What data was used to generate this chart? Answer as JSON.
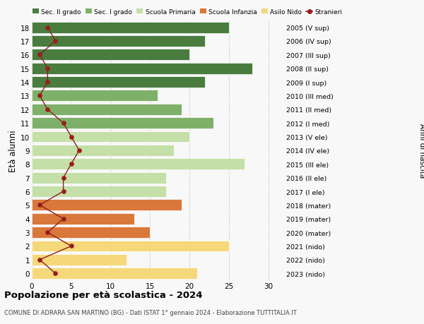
{
  "ages": [
    18,
    17,
    16,
    15,
    14,
    13,
    12,
    11,
    10,
    9,
    8,
    7,
    6,
    5,
    4,
    3,
    2,
    1,
    0
  ],
  "right_labels": [
    "2005 (V sup)",
    "2006 (IV sup)",
    "2007 (III sup)",
    "2008 (II sup)",
    "2009 (I sup)",
    "2010 (III med)",
    "2011 (II med)",
    "2012 (I med)",
    "2013 (V ele)",
    "2014 (IV ele)",
    "2015 (III ele)",
    "2016 (II ele)",
    "2017 (I ele)",
    "2018 (mater)",
    "2019 (mater)",
    "2020 (mater)",
    "2021 (nido)",
    "2022 (nido)",
    "2023 (nido)"
  ],
  "bar_values": [
    25,
    22,
    20,
    28,
    22,
    16,
    19,
    23,
    20,
    18,
    27,
    17,
    17,
    19,
    13,
    15,
    25,
    12,
    21
  ],
  "bar_colors": [
    "#4a7c3f",
    "#4a7c3f",
    "#4a7c3f",
    "#4a7c3f",
    "#4a7c3f",
    "#7fb069",
    "#7fb069",
    "#7fb069",
    "#c5dfa8",
    "#c5dfa8",
    "#c5dfa8",
    "#c5dfa8",
    "#c5dfa8",
    "#d9783a",
    "#d9783a",
    "#d9783a",
    "#f5d87a",
    "#f5d87a",
    "#f5d87a"
  ],
  "stranieri_values": [
    2,
    3,
    1,
    2,
    2,
    1,
    2,
    4,
    5,
    6,
    5,
    4,
    4,
    1,
    4,
    2,
    5,
    1,
    3
  ],
  "xlim": [
    0,
    32
  ],
  "xticks": [
    0,
    5,
    10,
    15,
    20,
    25,
    30
  ],
  "title": "Popolazione per età scolastica - 2024",
  "subtitle": "COMUNE DI ADRARA SAN MARTINO (BG) - Dati ISTAT 1° gennaio 2024 - Elaborazione TUTTITALIA.IT",
  "xlabel_left": "Età alunni",
  "xlabel_right": "Anni di nascita",
  "legend_labels": [
    "Sec. II grado",
    "Sec. I grado",
    "Scuola Primaria",
    "Scuola Infanzia",
    "Asilo Nido",
    "Stranieri"
  ],
  "legend_colors": [
    "#4a7c3f",
    "#7fb069",
    "#c5dfa8",
    "#d9783a",
    "#f5d87a",
    "#9b1c1c"
  ],
  "bar_height": 0.82,
  "background_color": "#f8f8f8",
  "grid_color": "#cccccc",
  "stranieri_color": "#9b1c1c",
  "stranieri_linecolor": "#8b2020"
}
